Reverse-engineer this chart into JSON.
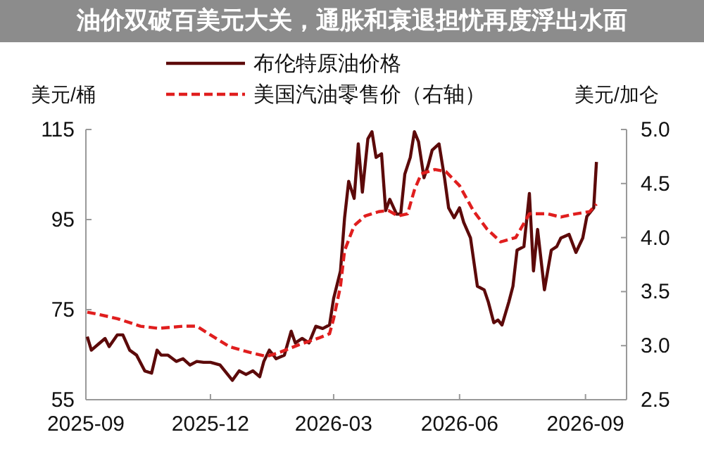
{
  "chart_data": {
    "type": "line",
    "title": "油价双破百美元大关，通胀和衰退担忧再度浮出水面",
    "ylabel": "美元/桶",
    "y2label": "美元/加仑",
    "legend": "top",
    "marker": "none",
    "xlim": [
      "2025-09-01",
      "2026-10-01"
    ],
    "xticks": [
      {
        "value": "2025-09-01",
        "label": "2025-09"
      },
      {
        "value": "2025-12-01",
        "label": "2025-12"
      },
      {
        "value": "2026-03-01",
        "label": "2026-03"
      },
      {
        "value": "2026-06-01",
        "label": "2026-06"
      },
      {
        "value": "2026-09-01",
        "label": "2026-09"
      }
    ],
    "ylim": [
      55,
      115
    ],
    "yticks": [
      55,
      75,
      95,
      115
    ],
    "y2lim": [
      2.5,
      5.0
    ],
    "y2ticks": [
      2.5,
      {
        "value": 3,
        "label": "3.0"
      },
      3.5,
      {
        "value": 4,
        "label": "4.0"
      },
      4.5,
      {
        "value": 5,
        "label": "5.0"
      }
    ],
    "series": [
      {
        "name": "布伦特原油价格",
        "color": "#5c0a0a",
        "line_style": "solid",
        "x": [
          "2025-09-02",
          "2025-09-05",
          "2025-09-10",
          "2025-09-15",
          "2025-09-18",
          "2025-09-24",
          "2025-09-28",
          "2025-10-03",
          "2025-10-08",
          "2025-10-14",
          "2025-10-19",
          "2025-10-23",
          "2025-10-26",
          "2025-10-31",
          "2025-11-06",
          "2025-11-11",
          "2025-11-16",
          "2025-11-21",
          "2025-11-26",
          "2025-12-01",
          "2025-12-08",
          "2025-12-17",
          "2025-12-22",
          "2025-12-27",
          "2026-01-01",
          "2026-01-06",
          "2026-01-09",
          "2026-01-13",
          "2026-01-18",
          "2026-01-24",
          "2026-01-29",
          "2026-02-01",
          "2026-02-06",
          "2026-02-11",
          "2026-02-16",
          "2026-02-21",
          "2026-02-26",
          "2026-03-01",
          "2026-03-06",
          "2026-03-09",
          "2026-03-12",
          "2026-03-16",
          "2026-03-19",
          "2026-03-22",
          "2026-03-26",
          "2026-03-29",
          "2026-04-01",
          "2026-04-05",
          "2026-04-08",
          "2026-04-11",
          "2026-04-16",
          "2026-04-19",
          "2026-04-22",
          "2026-04-26",
          "2026-04-29",
          "2026-05-02",
          "2026-05-06",
          "2026-05-09",
          "2026-05-12",
          "2026-05-17",
          "2026-05-21",
          "2026-05-24",
          "2026-05-28",
          "2026-06-01",
          "2026-06-04",
          "2026-06-09",
          "2026-06-14",
          "2026-06-19",
          "2026-06-22",
          "2026-06-26",
          "2026-06-29",
          "2026-07-02",
          "2026-07-07",
          "2026-07-10",
          "2026-07-13",
          "2026-07-18",
          "2026-07-22",
          "2026-07-25",
          "2026-07-28",
          "2026-08-02",
          "2026-08-07",
          "2026-08-11",
          "2026-08-14",
          "2026-08-20",
          "2026-08-25",
          "2026-08-30",
          "2026-09-02",
          "2026-09-07",
          "2026-09-09"
        ],
        "values": [
          69.0,
          66.0,
          67.3,
          68.6,
          66.8,
          69.4,
          69.4,
          66.0,
          64.9,
          61.4,
          60.9,
          66.0,
          64.9,
          64.9,
          63.5,
          64.1,
          62.7,
          63.5,
          63.3,
          63.3,
          62.7,
          59.3,
          61.4,
          60.6,
          61.4,
          60.1,
          63.5,
          66.0,
          64.1,
          64.9,
          70.2,
          67.6,
          68.6,
          67.6,
          71.3,
          70.8,
          71.6,
          77.5,
          83.6,
          95.4,
          103.5,
          99.7,
          111.8,
          101.1,
          112.9,
          114.5,
          108.8,
          109.6,
          97.0,
          99.5,
          96.2,
          96.2,
          105.1,
          108.8,
          114.5,
          112.3,
          104.3,
          107.0,
          110.4,
          111.8,
          104.3,
          97.6,
          95.4,
          97.6,
          94.4,
          90.9,
          80.2,
          79.4,
          76.7,
          72.1,
          72.7,
          71.6,
          76.7,
          80.2,
          88.2,
          89.0,
          100.8,
          83.6,
          92.8,
          79.4,
          88.2,
          89.0,
          90.9,
          91.7,
          87.7,
          90.9,
          95.7,
          97.6,
          107.8
        ]
      },
      {
        "name": "美国汽油零售价（右轴）",
        "color": "#e01e1e",
        "line_style": "dashed",
        "axis": "y2",
        "x": [
          "2025-09-02",
          "2025-09-10",
          "2025-09-24",
          "2025-10-11",
          "2025-10-24",
          "2025-11-11",
          "2025-11-21",
          "2025-12-01",
          "2025-12-15",
          "2025-12-29",
          "2026-01-11",
          "2026-01-21",
          "2026-02-04",
          "2026-02-18",
          "2026-02-26",
          "2026-03-01",
          "2026-03-06",
          "2026-03-09",
          "2026-03-16",
          "2026-03-24",
          "2026-04-03",
          "2026-04-10",
          "2026-04-17",
          "2026-04-24",
          "2026-04-29",
          "2026-05-04",
          "2026-05-14",
          "2026-05-22",
          "2026-06-01",
          "2026-06-11",
          "2026-06-21",
          "2026-07-01",
          "2026-07-12",
          "2026-07-22",
          "2026-08-04",
          "2026-08-14",
          "2026-08-25",
          "2026-09-04",
          "2026-09-09"
        ],
        "values": [
          3.31,
          3.29,
          3.25,
          3.18,
          3.16,
          3.18,
          3.18,
          3.1,
          2.99,
          2.94,
          2.9,
          2.94,
          3.01,
          3.07,
          3.11,
          3.25,
          3.55,
          3.88,
          4.11,
          4.2,
          4.24,
          4.25,
          4.2,
          4.22,
          4.44,
          4.59,
          4.63,
          4.61,
          4.48,
          4.25,
          4.08,
          3.96,
          4.0,
          4.22,
          4.22,
          4.19,
          4.22,
          4.24,
          4.31
        ]
      }
    ]
  }
}
